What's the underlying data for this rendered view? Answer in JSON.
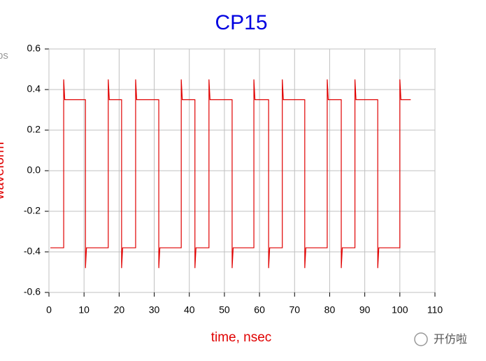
{
  "chart_data": {
    "type": "line",
    "title": "CP15",
    "x_label": "time, nsec",
    "y_label": "waveform",
    "annotation": "bs",
    "watermark": "开仿啦",
    "x": [
      0.4,
      4.2,
      4.2,
      4.5,
      10.4,
      10.4,
      10.7,
      16.9,
      16.9,
      17.2,
      20.7,
      20.7,
      21.0,
      24.7,
      24.7,
      25.0,
      31.3,
      31.3,
      31.6,
      37.7,
      37.7,
      38.0,
      41.6,
      41.6,
      41.9,
      45.6,
      45.6,
      45.9,
      52.2,
      52.2,
      52.5,
      58.4,
      58.4,
      58.7,
      62.6,
      62.6,
      62.9,
      66.5,
      66.5,
      66.8,
      72.9,
      72.9,
      73.2,
      79.3,
      79.3,
      79.6,
      83.3,
      83.3,
      83.6,
      87.2,
      87.2,
      87.5,
      93.7,
      93.7,
      94.0,
      100.0,
      100.0,
      100.3,
      103.1
    ],
    "series": [
      {
        "name": "waveform",
        "color": "#e00000",
        "values": [
          -0.38,
          -0.38,
          0.45,
          0.35,
          0.35,
          -0.48,
          -0.38,
          -0.38,
          0.45,
          0.35,
          0.35,
          -0.48,
          -0.38,
          -0.38,
          0.45,
          0.35,
          0.35,
          -0.48,
          -0.38,
          -0.38,
          0.45,
          0.35,
          0.35,
          -0.48,
          -0.38,
          -0.38,
          0.45,
          0.35,
          0.35,
          -0.48,
          -0.38,
          -0.38,
          0.45,
          0.35,
          0.35,
          -0.48,
          -0.38,
          -0.38,
          0.45,
          0.35,
          0.35,
          -0.48,
          -0.38,
          -0.38,
          0.45,
          0.35,
          0.35,
          -0.48,
          -0.38,
          -0.38,
          0.45,
          0.35,
          0.35,
          -0.48,
          -0.38,
          -0.38,
          0.45,
          0.35,
          0.35
        ]
      }
    ],
    "xlim": [
      0,
      110
    ],
    "xticks": [
      0,
      10,
      20,
      30,
      40,
      50,
      60,
      70,
      80,
      90,
      100,
      110
    ],
    "ylim": [
      -0.6,
      0.6
    ],
    "yticks": [
      -0.6,
      -0.4,
      -0.2,
      {
        "value": 0,
        "label": "0.0"
      },
      0.2,
      0.4,
      0.6
    ],
    "grid": true
  }
}
